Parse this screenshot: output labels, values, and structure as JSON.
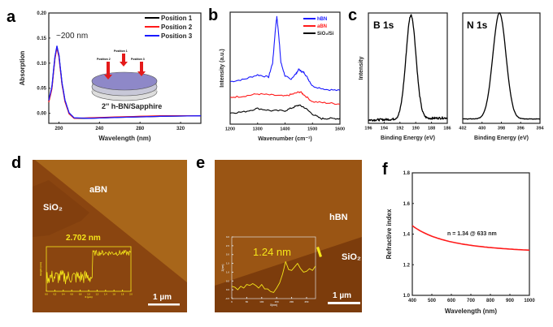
{
  "panel_labels": [
    "a",
    "b",
    "c",
    "d",
    "e",
    "f"
  ],
  "colors": {
    "black": "#000000",
    "red": "#ff1a1a",
    "blue": "#1a1aff",
    "afm_yellow": "#f5e61a",
    "afm_light": "#a8661a",
    "afm_dark": "#853f0c"
  },
  "chart_data": [
    {
      "id": "a",
      "type": "line",
      "xlabel": "Wavelength (nm)",
      "ylabel": "Absorption",
      "xlim": [
        190,
        340
      ],
      "ylim": [
        -0.02,
        0.2
      ],
      "xticks": [
        "200",
        "240",
        "280",
        "320"
      ],
      "yticks": [
        "0.00",
        "0.05",
        "0.10",
        "0.15",
        "0.20"
      ],
      "legend_position": "top-right",
      "annotation": "~200 nm",
      "inset_caption": "2'' h-BN/Sapphire",
      "inset_labels": [
        "Position 1",
        "Position 2",
        "Position 3"
      ],
      "series": [
        {
          "name": "Position 1",
          "color": "#000000",
          "x": [
            190,
            193,
            196,
            198,
            200,
            203,
            206,
            210,
            215,
            230,
            260,
            300,
            340
          ],
          "y": [
            0.025,
            0.05,
            0.11,
            0.133,
            0.115,
            0.06,
            0.025,
            0.0,
            -0.01,
            -0.01,
            -0.008,
            -0.006,
            -0.005
          ]
        },
        {
          "name": "Position 2",
          "color": "#ff1a1a",
          "x": [
            190,
            193,
            196,
            198,
            200,
            203,
            206,
            210,
            215,
            230,
            260,
            300,
            340
          ],
          "y": [
            0.022,
            0.048,
            0.108,
            0.131,
            0.112,
            0.058,
            0.023,
            -0.001,
            -0.01,
            -0.009,
            -0.007,
            -0.005,
            -0.005
          ]
        },
        {
          "name": "Position 3",
          "color": "#1a1aff",
          "x": [
            190,
            193,
            196,
            198,
            200,
            203,
            206,
            210,
            215,
            230,
            260,
            300,
            340
          ],
          "y": [
            0.026,
            0.052,
            0.112,
            0.134,
            0.116,
            0.061,
            0.026,
            0.001,
            -0.009,
            -0.01,
            -0.008,
            -0.006,
            -0.005
          ]
        }
      ]
    },
    {
      "id": "b",
      "type": "line",
      "xlabel": "Wavenumber (cm⁻¹)",
      "ylabel": "Intensity (a.u.)",
      "xlim": [
        1200,
        1600
      ],
      "ylim": [
        0,
        1
      ],
      "xticks": [
        "1200",
        "1300",
        "1400",
        "1500",
        "1600"
      ],
      "legend_position": "top-right",
      "series": [
        {
          "name": "hBN",
          "color": "#1a1aff",
          "x": [
            1200,
            1250,
            1300,
            1340,
            1355,
            1365,
            1370,
            1375,
            1385,
            1400,
            1420,
            1440,
            1450,
            1460,
            1470,
            1485,
            1500,
            1550,
            1600
          ],
          "y": [
            0.38,
            0.4,
            0.44,
            0.42,
            0.55,
            0.85,
            0.96,
            0.85,
            0.55,
            0.43,
            0.4,
            0.45,
            0.49,
            0.47,
            0.46,
            0.4,
            0.34,
            0.31,
            0.3
          ]
        },
        {
          "name": "aBN",
          "color": "#ff1a1a",
          "x": [
            1200,
            1250,
            1300,
            1350,
            1400,
            1430,
            1455,
            1470,
            1500,
            1550,
            1600
          ],
          "y": [
            0.24,
            0.25,
            0.27,
            0.26,
            0.25,
            0.27,
            0.29,
            0.26,
            0.2,
            0.19,
            0.18
          ]
        },
        {
          "name": "SiO₂/Si",
          "color": "#000000",
          "x": [
            1200,
            1250,
            1300,
            1350,
            1400,
            1430,
            1450,
            1470,
            1500,
            1530,
            1560,
            1600
          ],
          "y": [
            0.1,
            0.11,
            0.14,
            0.12,
            0.12,
            0.15,
            0.17,
            0.15,
            0.09,
            0.05,
            0.05,
            0.05
          ]
        }
      ]
    },
    {
      "id": "c1",
      "type": "line",
      "title": "B 1s",
      "xlabel": "Binding Energy (eV)",
      "ylabel": "Intensity",
      "xlim": [
        196,
        186
      ],
      "ylim": [
        0,
        1
      ],
      "x_reversed": true,
      "xticks": [
        "196",
        "194",
        "192",
        "190",
        "188",
        "186"
      ],
      "series": [
        {
          "color": "#000000",
          "peak_center": 190.6,
          "fwhm": 1.5,
          "baseline_left": 0.03,
          "baseline_right": 0.05,
          "peak_height": 0.94
        }
      ]
    },
    {
      "id": "c2",
      "type": "line",
      "title": "N 1s",
      "xlabel": "Binding Energy (eV)",
      "xlim": [
        402,
        394
      ],
      "ylim": [
        0,
        1
      ],
      "x_reversed": true,
      "xticks": [
        "402",
        "400",
        "398",
        "396",
        "394"
      ],
      "series": [
        {
          "color": "#000000",
          "peak_center": 398.2,
          "fwhm": 1.6,
          "baseline_left": 0.04,
          "baseline_right": 0.04,
          "peak_height": 0.96
        }
      ]
    },
    {
      "id": "d_inset",
      "type": "line",
      "title": "2.702 nm",
      "xlabel": "X (µm)",
      "ylabel": "Height (nm)",
      "xlim": [
        0,
        2.0
      ],
      "ylim": [
        0,
        5
      ],
      "xticks": [
        "0.0",
        "0.2",
        "0.4",
        "0.6",
        "0.8",
        "1.0",
        "1.2",
        "1.4",
        "1.6",
        "1.8",
        "2.0"
      ],
      "series": [
        {
          "color": "#f5e61a",
          "step_at": 1.1,
          "low": 1.6,
          "high": 4.3
        }
      ]
    },
    {
      "id": "e_inset",
      "type": "line",
      "title": "1.24 nm",
      "xlabel": "X(nm)",
      "ylabel": "Z(nm)",
      "xlim": [
        0,
        280
      ],
      "ylim": [
        -0.5,
        3.0
      ],
      "xticks": [
        "0",
        "50",
        "100",
        "150",
        "200",
        "250"
      ],
      "yticks": [
        "-0.5",
        "0.0",
        "0.5",
        "1.0",
        "1.5",
        "2.0",
        "2.5",
        "3.0"
      ],
      "series": [
        {
          "color": "#f5e61a",
          "x": [
            0,
            10,
            20,
            30,
            40,
            50,
            60,
            70,
            80,
            90,
            100,
            110,
            120,
            130,
            140,
            150,
            160,
            170,
            180,
            190,
            200,
            210,
            220,
            230,
            240,
            250,
            260,
            270,
            280
          ],
          "y": [
            0.2,
            0.15,
            0.0,
            0.2,
            0.1,
            0.3,
            0.25,
            0.35,
            0.25,
            0.1,
            0.3,
            0.05,
            0.05,
            -0.1,
            -0.15,
            0.1,
            0.4,
            0.9,
            1.6,
            1.15,
            1.1,
            1.3,
            1.5,
            1.2,
            1.0,
            1.05,
            1.2,
            1.1,
            1.35
          ]
        }
      ]
    },
    {
      "id": "f",
      "type": "line",
      "xlabel": "Wavelength (nm)",
      "ylabel": "Refractive index",
      "xlim": [
        400,
        1000
      ],
      "ylim": [
        1.0,
        1.8
      ],
      "xticks": [
        "400",
        "500",
        "600",
        "700",
        "800",
        "900",
        "1000"
      ],
      "yticks": [
        "1.0",
        "1.2",
        "1.4",
        "1.6",
        "1.8"
      ],
      "annotation": "n = 1.34 @ 633 nm",
      "series": [
        {
          "color": "#ff1a1a",
          "x": [
            400,
            450,
            500,
            550,
            600,
            633,
            700,
            800,
            900,
            1000
          ],
          "y": [
            1.455,
            1.415,
            1.386,
            1.365,
            1.349,
            1.341,
            1.327,
            1.312,
            1.302,
            1.295
          ]
        }
      ]
    }
  ],
  "afm": {
    "d": {
      "region_labels": [
        "aBN",
        "SiO₂"
      ],
      "scale_bar": "1 µm"
    },
    "e": {
      "region_labels": [
        "hBN",
        "SiO₂"
      ],
      "scale_bar": "1 µm"
    }
  }
}
